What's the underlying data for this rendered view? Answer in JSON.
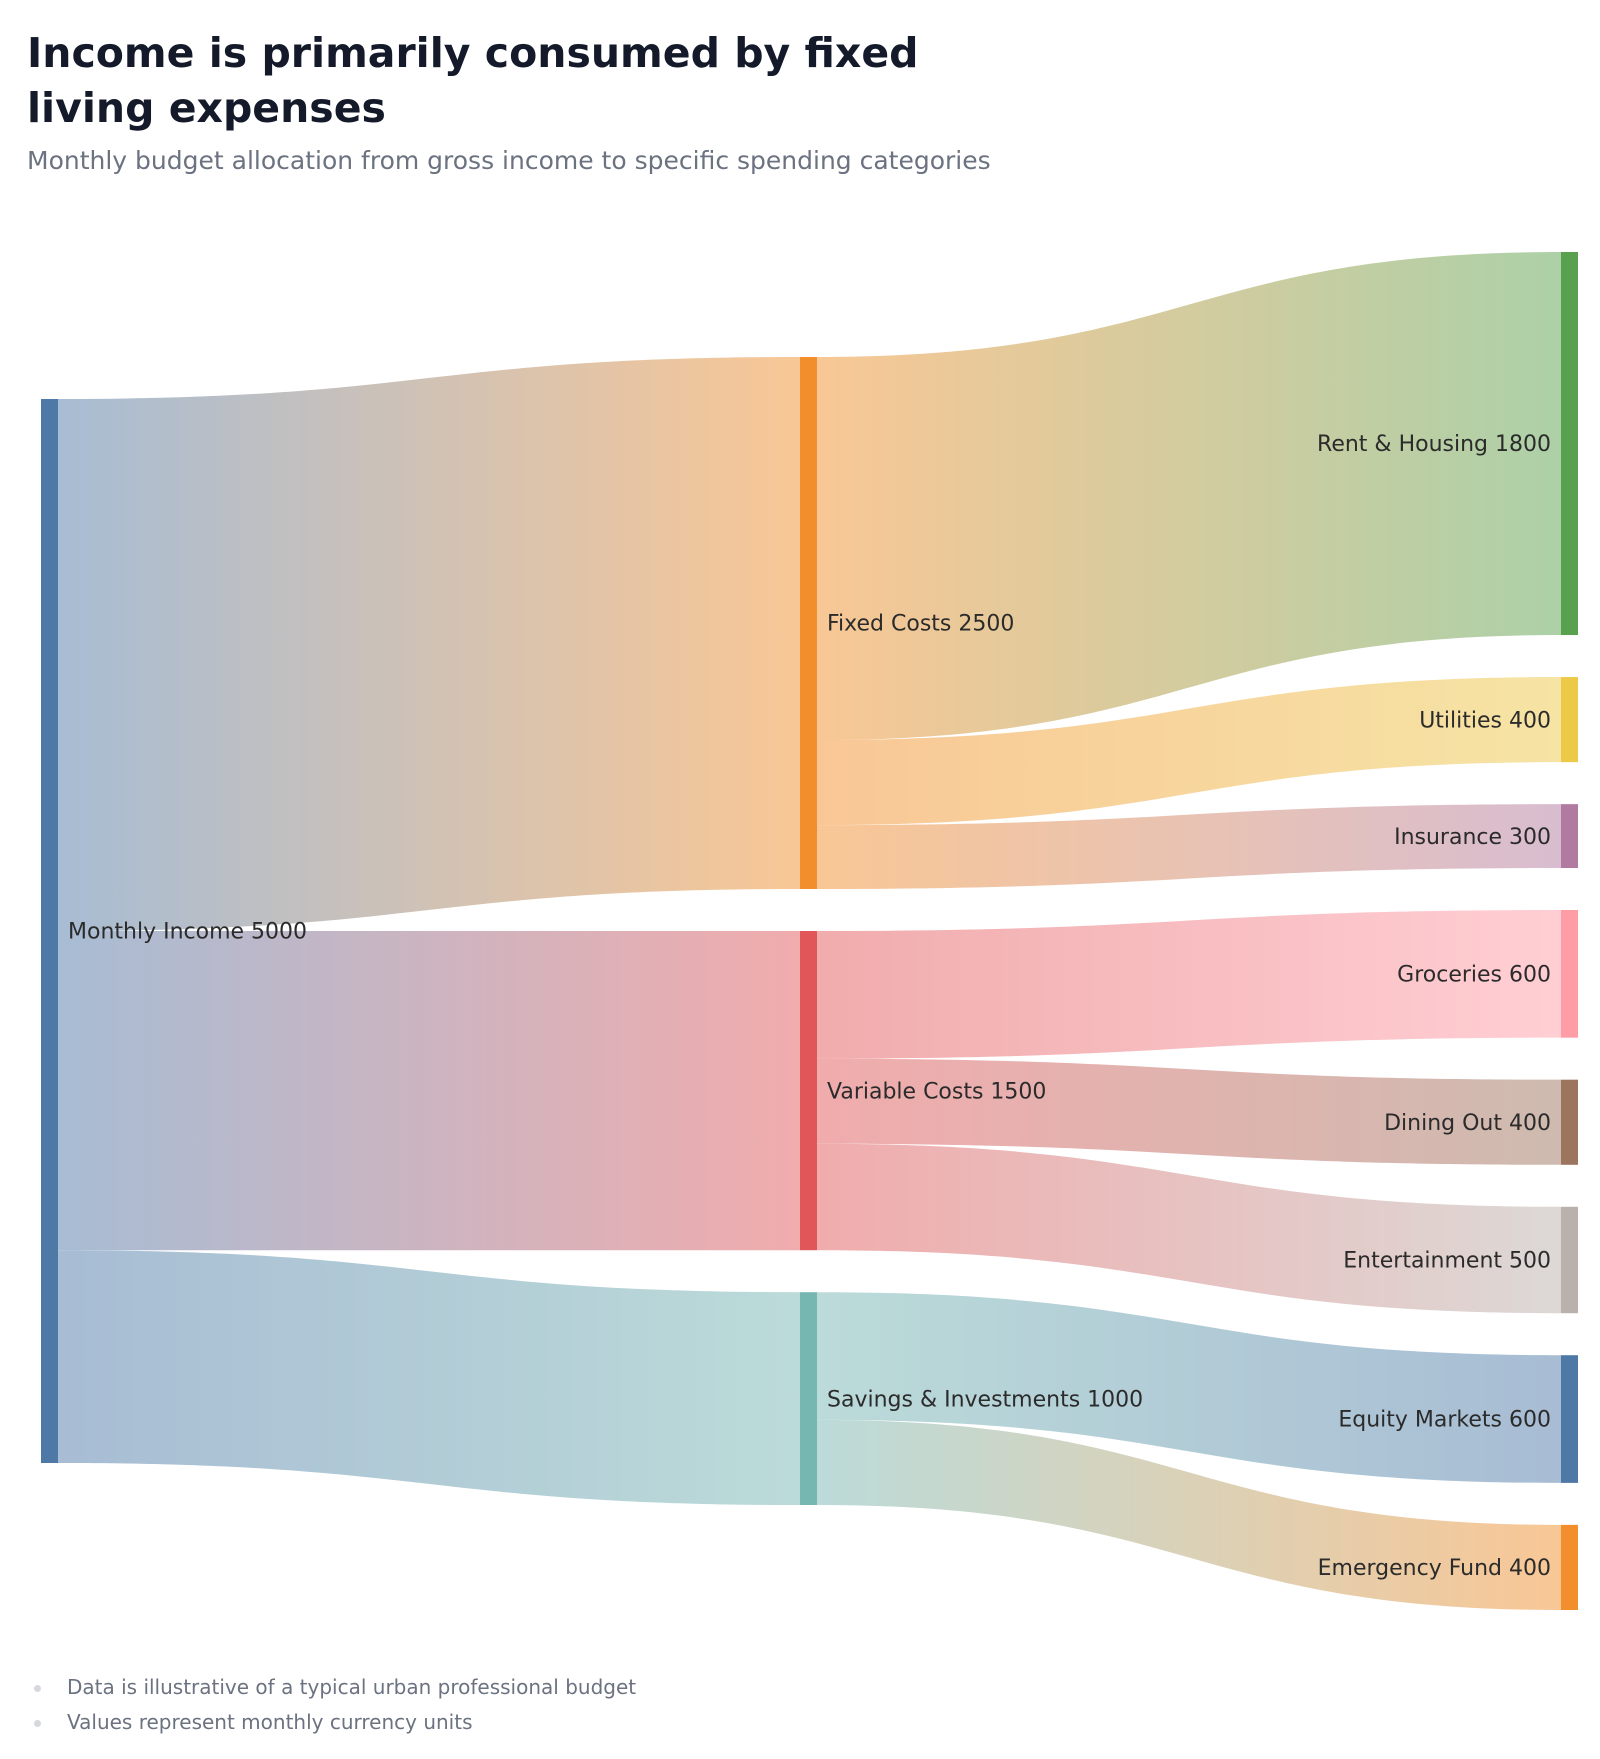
{
  "header": {
    "title": "Income is primarily consumed by fixed living expenses",
    "subtitle": "Monthly budget allocation from gross income to specific spending categories"
  },
  "chart_data": {
    "type": "sankey",
    "nodes": [
      {
        "id": "income",
        "name": "Monthly Income",
        "value": 5000,
        "column": 0,
        "color": "#4e79a7"
      },
      {
        "id": "fixed",
        "name": "Fixed Costs",
        "value": 2500,
        "column": 1,
        "color": "#f28e2b"
      },
      {
        "id": "variable",
        "name": "Variable Costs",
        "value": 1500,
        "column": 1,
        "color": "#e15759"
      },
      {
        "id": "savings",
        "name": "Savings & Investments",
        "value": 1000,
        "column": 1,
        "color": "#76b7b2"
      },
      {
        "id": "rent",
        "name": "Rent & Housing",
        "value": 1800,
        "column": 2,
        "color": "#59a14f"
      },
      {
        "id": "utilities",
        "name": "Utilities",
        "value": 400,
        "column": 2,
        "color": "#edc948"
      },
      {
        "id": "insurance",
        "name": "Insurance",
        "value": 300,
        "column": 2,
        "color": "#b07aa1"
      },
      {
        "id": "groceries",
        "name": "Groceries",
        "value": 600,
        "column": 2,
        "color": "#ff9da7"
      },
      {
        "id": "dining",
        "name": "Dining Out",
        "value": 400,
        "column": 2,
        "color": "#9c755f"
      },
      {
        "id": "entertainment",
        "name": "Entertainment",
        "value": 500,
        "column": 2,
        "color": "#bab0ac"
      },
      {
        "id": "equity",
        "name": "Equity Markets",
        "value": 600,
        "column": 2,
        "color": "#4e79a7"
      },
      {
        "id": "emergency",
        "name": "Emergency Fund",
        "value": 400,
        "column": 2,
        "color": "#f28e2b"
      }
    ],
    "links": [
      {
        "source": "income",
        "target": "fixed",
        "value": 2500
      },
      {
        "source": "income",
        "target": "variable",
        "value": 1500
      },
      {
        "source": "income",
        "target": "savings",
        "value": 1000
      },
      {
        "source": "fixed",
        "target": "rent",
        "value": 1800
      },
      {
        "source": "fixed",
        "target": "utilities",
        "value": 400
      },
      {
        "source": "fixed",
        "target": "insurance",
        "value": 300
      },
      {
        "source": "variable",
        "target": "groceries",
        "value": 600
      },
      {
        "source": "variable",
        "target": "dining",
        "value": 400
      },
      {
        "source": "variable",
        "target": "entertainment",
        "value": 500
      },
      {
        "source": "savings",
        "target": "equity",
        "value": 600
      },
      {
        "source": "savings",
        "target": "emergency",
        "value": 400
      }
    ]
  },
  "footnotes": [
    "Data is illustrative of a typical urban professional budget",
    "Values represent monthly currency units"
  ]
}
